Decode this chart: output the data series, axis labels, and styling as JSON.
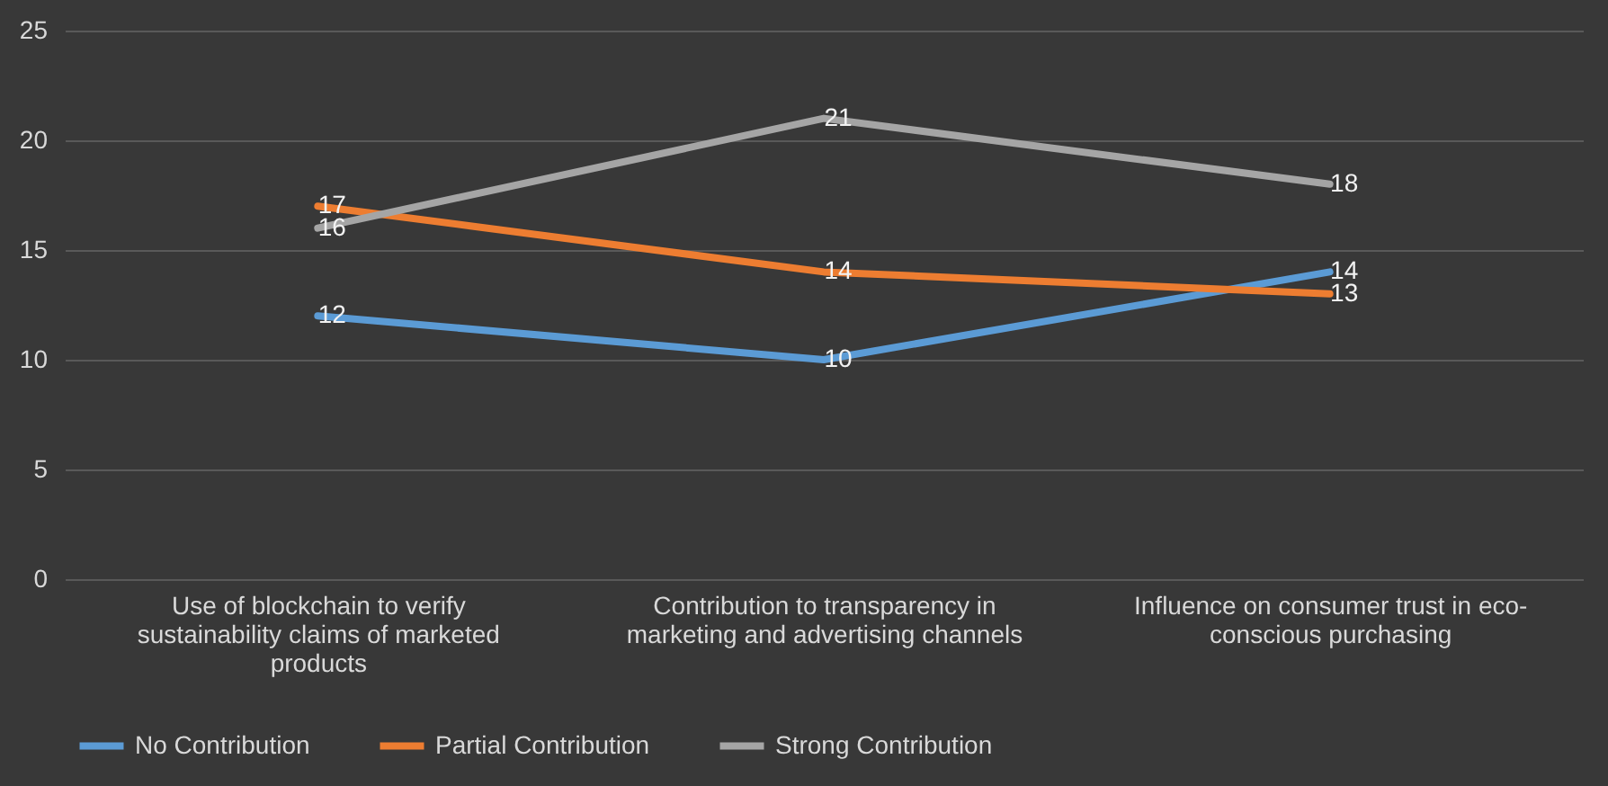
{
  "chart_data": {
    "type": "line",
    "categories": [
      "Use of blockchain to verify sustainability claims of marketed products",
      "Contribution to transparency in marketing and advertising channels",
      "Influence on consumer trust in eco-conscious purchasing"
    ],
    "series": [
      {
        "name": "No Contribution",
        "color": "#5b9bd5",
        "values": [
          12,
          10,
          14
        ]
      },
      {
        "name": "Partial Contribution",
        "color": "#ed7d31",
        "values": [
          17,
          14,
          13
        ]
      },
      {
        "name": "Strong Contribution",
        "color": "#a5a5a5",
        "values": [
          16,
          21,
          18
        ]
      }
    ],
    "ylim": [
      0,
      25
    ],
    "yticks": [
      0,
      5,
      10,
      15,
      20,
      25
    ],
    "grid": "y",
    "legend": "bottom",
    "data_labels": true,
    "marker": "none",
    "line_style": "solid"
  }
}
